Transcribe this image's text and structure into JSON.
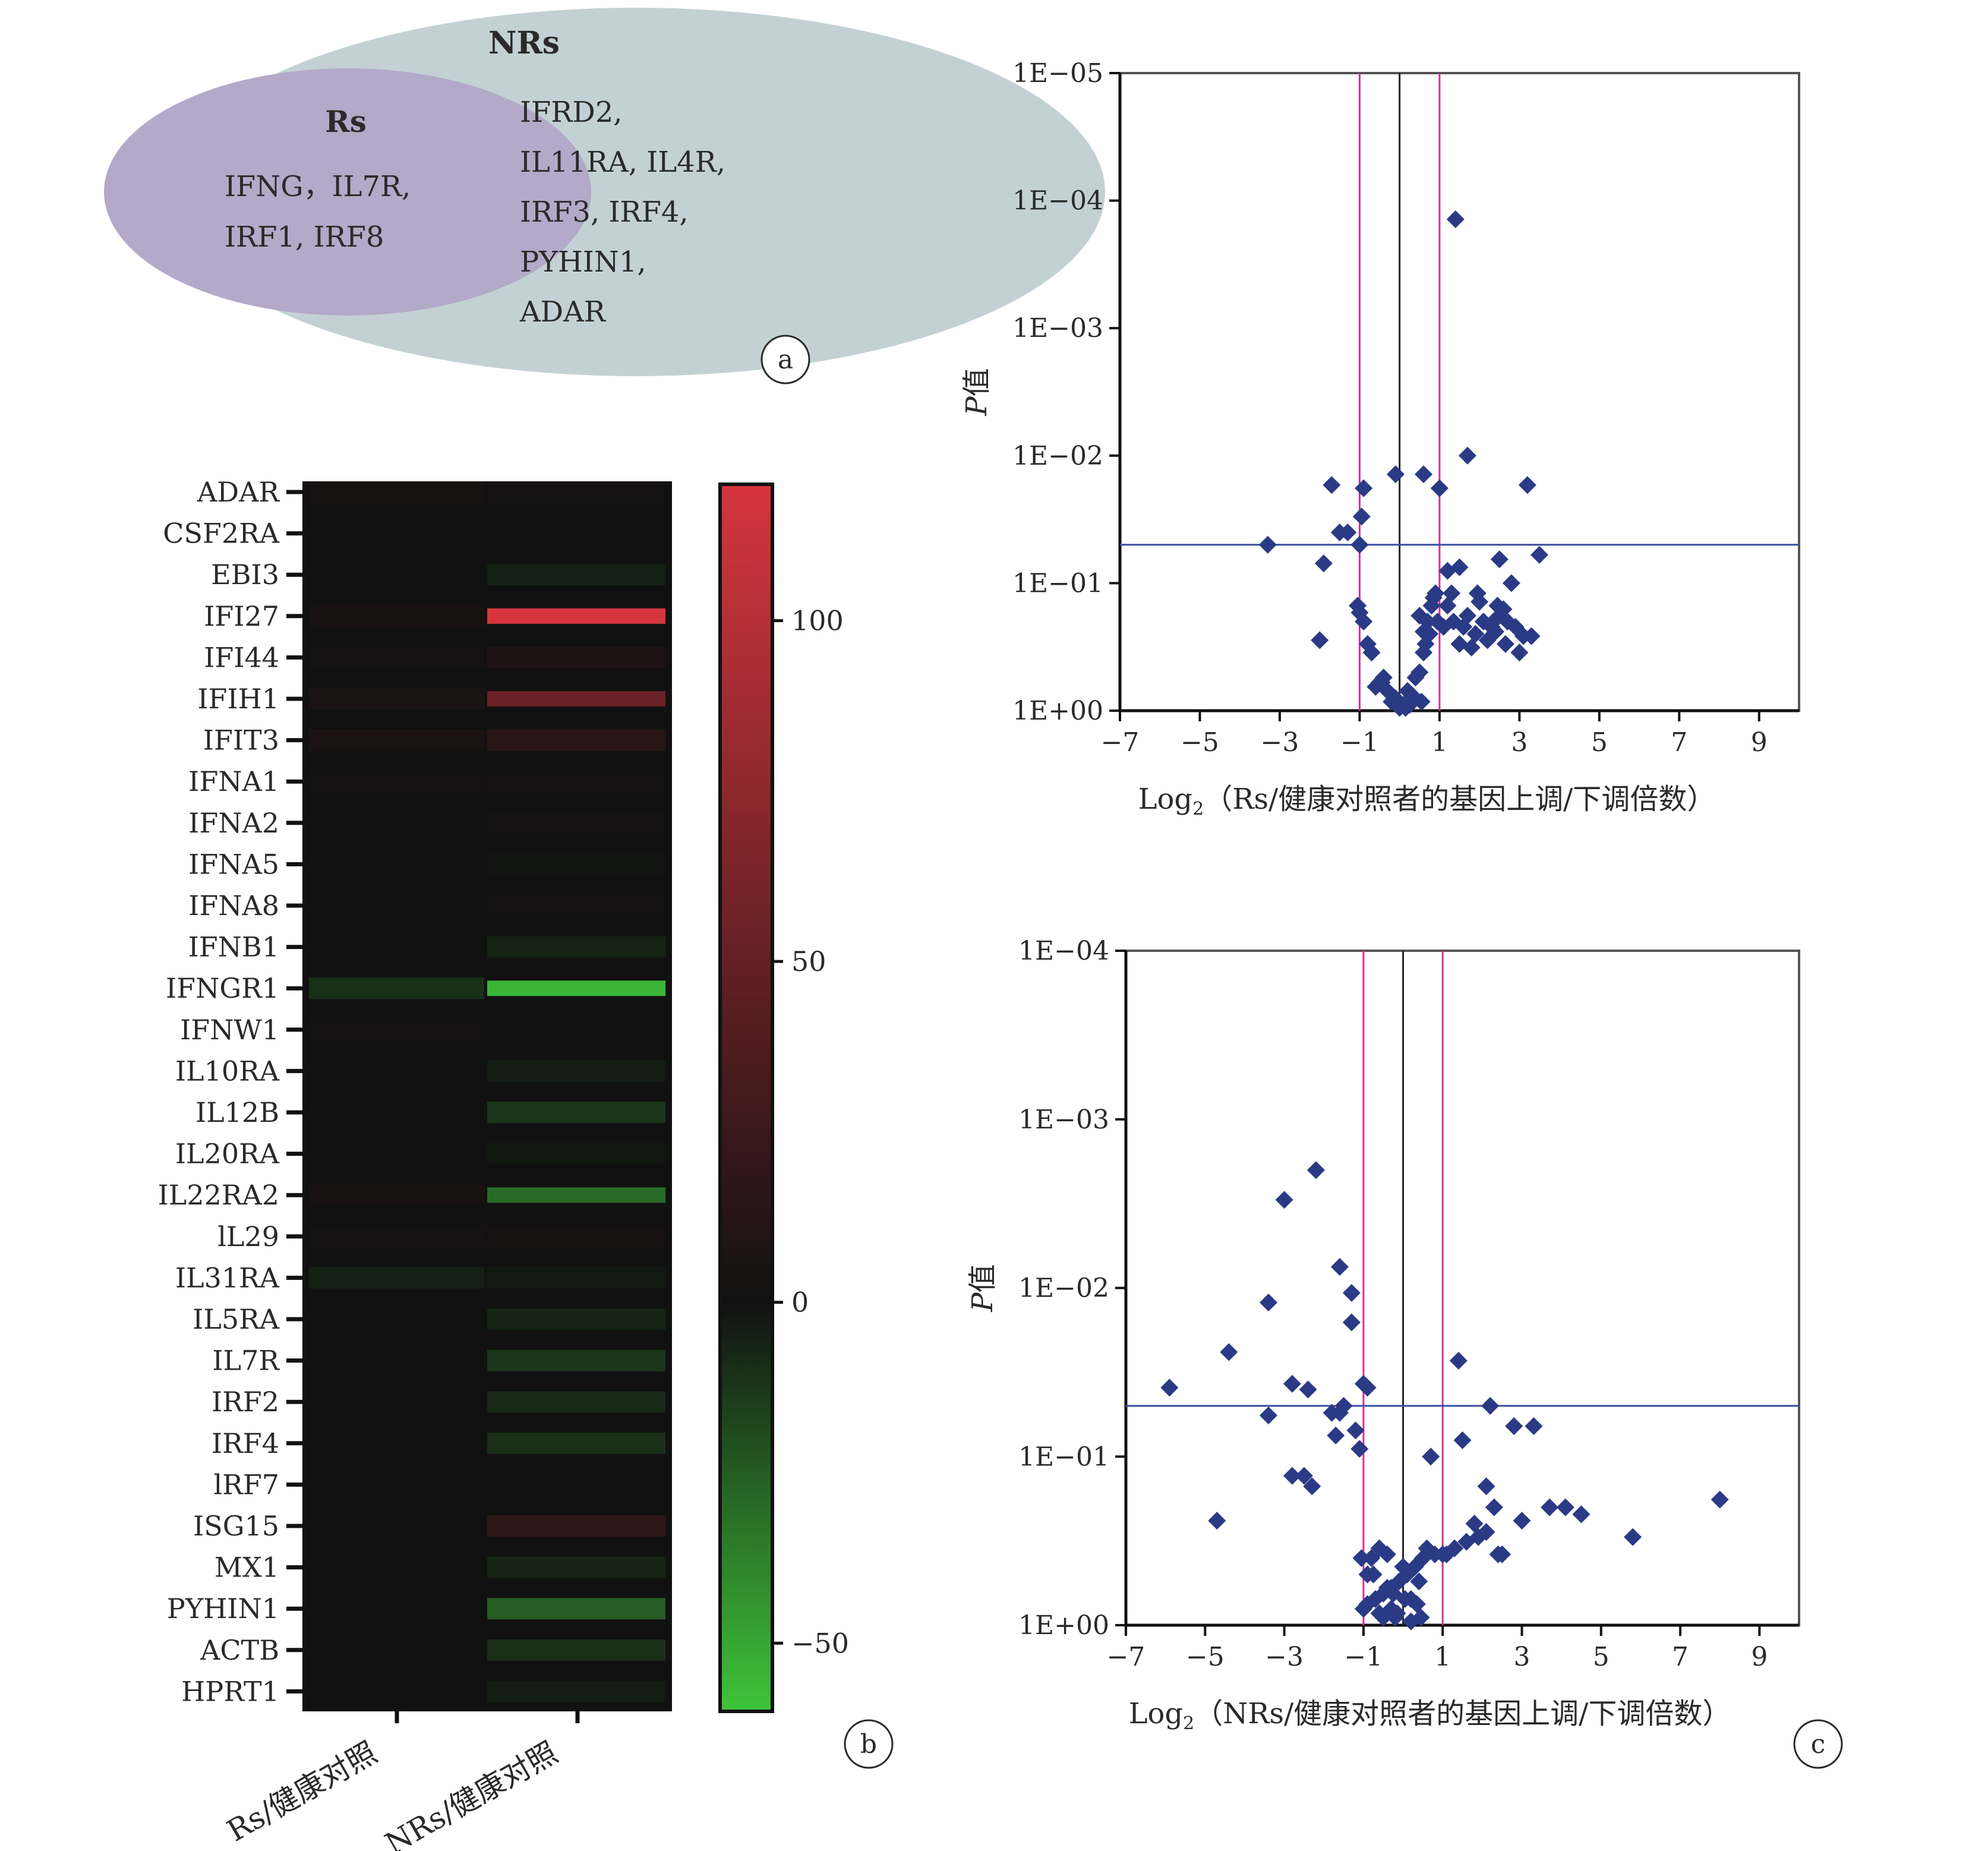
{
  "panel_a": {
    "outer_title": "NRs",
    "inner_title": "Rs",
    "inner_genes": [
      "IFNG，IL7R,",
      "IRF1, IRF8"
    ],
    "outer_genes": [
      "IFRD2,",
      "IL11RA, IL4R,",
      "IRF3, IRF4,",
      "PYHIN1,",
      "ADAR"
    ],
    "outer_color": "#c3d1d4",
    "inner_color": "#b3a9c8",
    "label": "a"
  },
  "panel_b": {
    "label": "b",
    "genes": [
      "ADAR",
      "CSF2RA",
      "EBI3",
      "IFI27",
      "IFI44",
      "IFIH1",
      "IFIT3",
      "IFNA1",
      "IFNA2",
      "IFNA5",
      "IFNA8",
      "IFNB1",
      "IFNGR1",
      "IFNW1",
      "IL10RA",
      "IL12B",
      "IL20RA",
      "IL22RA2",
      "lL29",
      "IL31RA",
      "IL5RA",
      "IL7R",
      "IRF2",
      "IRF4",
      "lRF7",
      "ISG15",
      "MX1",
      "PYHIN1",
      "ACTB",
      "HPRT1"
    ],
    "columns": [
      "Rs/健康对照",
      "NRs/健康对照"
    ],
    "colorbar_ticks": [
      "100",
      "50",
      "0",
      "−50"
    ]
  },
  "panel_c": {
    "label": "c",
    "ylabel": "P值"
  },
  "chart_data": [
    {
      "type": "heatmap",
      "rows": [
        "ADAR",
        "CSF2RA",
        "EBI3",
        "IFI27",
        "IFI44",
        "IFIH1",
        "IFIT3",
        "IFNA1",
        "IFNA2",
        "IFNA5",
        "IFNA8",
        "IFNB1",
        "IFNGR1",
        "IFNW1",
        "IL10RA",
        "IL12B",
        "IL20RA",
        "IL22RA2",
        "lL29",
        "IL31RA",
        "IL5RA",
        "IL7R",
        "IRF2",
        "IRF4",
        "lRF7",
        "ISG15",
        "MX1",
        "PYHIN1",
        "ACTB",
        "HPRT1"
      ],
      "columns": [
        "Rs/健康对照",
        "NRs/健康对照"
      ],
      "values": [
        [
          3,
          1
        ],
        [
          0,
          0
        ],
        [
          0,
          -5
        ],
        [
          4,
          120
        ],
        [
          2,
          8
        ],
        [
          5,
          55
        ],
        [
          6,
          15
        ],
        [
          1,
          1
        ],
        [
          0,
          2
        ],
        [
          0,
          -1
        ],
        [
          0,
          1
        ],
        [
          0,
          -6
        ],
        [
          -10,
          -55
        ],
        [
          1,
          0
        ],
        [
          0,
          -4
        ],
        [
          0,
          -12
        ],
        [
          0,
          -2
        ],
        [
          4,
          -30
        ],
        [
          2,
          3
        ],
        [
          -5,
          -3
        ],
        [
          0,
          -6
        ],
        [
          0,
          -12
        ],
        [
          0,
          -8
        ],
        [
          0,
          -10
        ],
        [
          0,
          0
        ],
        [
          0,
          18
        ],
        [
          0,
          -6
        ],
        [
          0,
          -25
        ],
        [
          0,
          -10
        ],
        [
          0,
          -4
        ]
      ],
      "colorbar_ticks": [
        100,
        50,
        0,
        -50
      ],
      "colorbar_range": [
        -60,
        120
      ],
      "colors": {
        "high": "#d6353e",
        "mid": "#111111",
        "low": "#3fc43a"
      }
    },
    {
      "type": "scatter",
      "xlabel_main": "Log",
      "xlabel_sub": "2",
      "xlabel_rest": "（Rs/健康对照者的基因上调/下调倍数）",
      "ylabel": "P值",
      "xticks": [
        -7,
        -5,
        -3,
        -1,
        1,
        3,
        5,
        7,
        9
      ],
      "xlim": [
        -7,
        10
      ],
      "yscale": "log-reversed",
      "ytick_labels": [
        "1E−05",
        "1E−04",
        "1E−03",
        "1E−02",
        "1E−01",
        "1E+00"
      ],
      "ylim": [
        1,
        1e-05
      ],
      "vlines": [
        -1,
        0,
        1
      ],
      "hline": 0.05,
      "x": [
        1.4,
        1.7,
        -1.7,
        -0.9,
        -0.1,
        0.6,
        1.0,
        3.2,
        -0.95,
        -1.3,
        -3.3,
        -1.5,
        -1.0,
        -1.9,
        1.2,
        1.5,
        2.5,
        3.5,
        -1.05,
        -1.0,
        -0.9,
        -0.8,
        -0.7,
        -2.0,
        -0.5,
        -0.3,
        -0.1,
        0.1,
        0.3,
        0.4,
        0.5,
        0.6,
        -0.6,
        -0.4,
        0.0,
        0.2,
        -0.2,
        -0.45,
        0.55,
        0.25,
        0.15,
        0.7,
        0.8,
        0.85,
        0.9,
        0.6,
        0.5,
        0.65,
        1.2,
        1.35,
        1.6,
        1.7,
        1.9,
        2.1,
        2.3,
        2.5,
        2.6,
        2.7,
        2.9,
        3.1,
        3.3,
        1.5,
        1.8,
        2.2,
        2.4,
        2.0,
        1.3,
        1.1,
        2.8,
        3.0,
        2.35,
        2.45,
        1.95,
        2.65,
        0.75,
        0.95
      ],
      "y": [
        0.00014,
        0.01,
        0.017,
        0.018,
        0.014,
        0.014,
        0.018,
        0.017,
        0.03,
        0.04,
        0.05,
        0.04,
        0.05,
        0.07,
        0.08,
        0.075,
        0.065,
        0.06,
        0.15,
        0.17,
        0.2,
        0.3,
        0.35,
        0.28,
        0.6,
        0.7,
        0.8,
        0.9,
        0.75,
        0.55,
        0.5,
        0.35,
        0.65,
        0.55,
        0.95,
        0.7,
        0.85,
        0.6,
        0.85,
        0.9,
        0.95,
        0.2,
        0.15,
        0.13,
        0.12,
        0.24,
        0.18,
        0.3,
        0.15,
        0.2,
        0.22,
        0.18,
        0.25,
        0.2,
        0.22,
        0.18,
        0.16,
        0.2,
        0.22,
        0.26,
        0.26,
        0.3,
        0.32,
        0.28,
        0.24,
        0.14,
        0.12,
        0.22,
        0.1,
        0.35,
        0.2,
        0.15,
        0.12,
        0.3,
        0.25,
        0.2
      ]
    },
    {
      "type": "scatter",
      "xlabel_main": "Log",
      "xlabel_sub": "2",
      "xlabel_rest": "（NRs/健康对照者的基因上调/下调倍数）",
      "ylabel": "P值",
      "xticks": [
        -7,
        -5,
        -3,
        -1,
        1,
        3,
        5,
        7,
        9
      ],
      "xlim": [
        -7,
        10
      ],
      "yscale": "log-reversed",
      "ytick_labels": [
        "1E−04",
        "1E−03",
        "1E−02",
        "1E−01",
        "1E+00"
      ],
      "ylim": [
        1,
        0.0001
      ],
      "vlines": [
        -1,
        0,
        1
      ],
      "hline": 0.05,
      "x": [
        -2.2,
        -3.0,
        -1.6,
        -1.3,
        -3.4,
        -1.3,
        -4.4,
        -5.9,
        -2.4,
        -2.8,
        -1.0,
        -3.4,
        -1.5,
        -1.6,
        -0.9,
        -1.8,
        -1.2,
        -1.7,
        1.4,
        2.2,
        1.5,
        2.8,
        3.3,
        -2.8,
        -2.5,
        -2.3,
        -1.1,
        0.7,
        -4.7,
        2.1,
        2.3,
        3.0,
        3.7,
        4.1,
        4.5,
        5.8,
        8.0,
        1.0,
        1.3,
        1.8,
        2.1,
        2.4,
        1.9,
        1.6,
        2.5,
        0.8,
        1.1,
        0.5,
        0.3,
        0.1,
        -0.1,
        -0.3,
        -0.5,
        -0.7,
        -0.9,
        -1.0,
        -0.6,
        -0.2,
        0.2,
        0.4,
        -0.8,
        -0.4,
        0.0,
        0.6,
        -0.5,
        -0.3,
        0.2,
        -0.75,
        -0.25,
        0.35,
        -0.6,
        -0.15,
        0.45,
        -0.4,
        0.05,
        -0.9,
        -1.05
      ],
      "y": [
        0.002,
        0.003,
        0.0075,
        0.0107,
        0.0122,
        0.016,
        0.024,
        0.039,
        0.04,
        0.037,
        0.037,
        0.057,
        0.05,
        0.055,
        0.039,
        0.055,
        0.07,
        0.075,
        0.027,
        0.05,
        0.08,
        0.066,
        0.066,
        0.13,
        0.13,
        0.15,
        0.09,
        0.1,
        0.24,
        0.15,
        0.2,
        0.24,
        0.2,
        0.2,
        0.22,
        0.3,
        0.18,
        0.38,
        0.35,
        0.25,
        0.28,
        0.38,
        0.3,
        0.32,
        0.38,
        0.38,
        0.38,
        0.4,
        0.45,
        0.5,
        0.55,
        0.6,
        0.65,
        0.7,
        0.75,
        0.8,
        0.85,
        0.9,
        0.95,
        0.55,
        0.4,
        0.38,
        0.45,
        0.35,
        0.9,
        0.8,
        0.7,
        0.5,
        0.65,
        0.75,
        0.35,
        0.85,
        0.9,
        0.6,
        0.7,
        0.5,
        0.4
      ]
    }
  ]
}
